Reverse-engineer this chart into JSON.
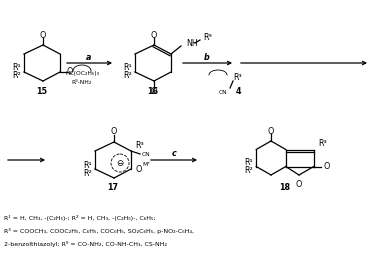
{
  "background_color": "#ffffff",
  "figsize": [
    3.75,
    2.74
  ],
  "dpi": 100,
  "footnote_lines": [
    "R¹ = H, CH₃, -(C₂H₅)-; R² = H, CH₃, -(C₂H₅)-, C₆H₅;",
    "R³ = COOCH₃, COOC₂H₅, C₆H₅, COC₆H₅, SO₂C₆H₅, p-NO₂-C₆H₄,",
    "2-benzolthiazolyl; R⁹ = CO-NH₂, CO-NH-CH₃, CS-NH₂"
  ]
}
